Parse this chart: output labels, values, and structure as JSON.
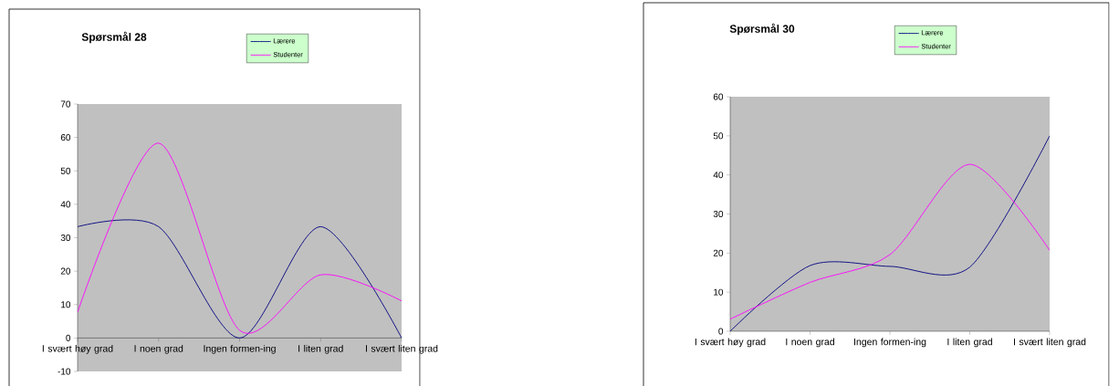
{
  "chart_data": [
    {
      "type": "line",
      "title": "Spørsmål 28",
      "categories": [
        "I svært høy grad",
        "I noen grad",
        "Ingen formen-ing",
        "I liten grad",
        "I svært liten grad"
      ],
      "series": [
        {
          "name": "Lærere",
          "color": "#000080",
          "values": [
            33.3,
            33.3,
            0,
            33.3,
            0
          ]
        },
        {
          "name": "Studenter",
          "color": "#ff00ff",
          "values": [
            7.7,
            58.3,
            2.3,
            18.9,
            11.1
          ]
        }
      ],
      "ylim": [
        -10,
        70
      ],
      "yticks": [
        -10,
        0,
        10,
        20,
        30,
        40,
        50,
        60,
        70
      ],
      "legend": "top",
      "marker": "none"
    },
    {
      "type": "line",
      "title": "Spørsmål 30",
      "categories": [
        "I svært høy grad",
        "I noen grad",
        "Ingen formen-ing",
        "I liten grad",
        "I svært liten grad"
      ],
      "series": [
        {
          "name": "Lærere",
          "color": "#000080",
          "values": [
            0,
            16.8,
            16.6,
            16.4,
            50
          ]
        },
        {
          "name": "Studenter",
          "color": "#ff00ff",
          "values": [
            3.1,
            12.5,
            19.6,
            42.7,
            20.7
          ]
        }
      ],
      "ylim": [
        0,
        60
      ],
      "yticks": [
        0,
        10,
        20,
        30,
        40,
        50,
        60
      ],
      "legend": "top",
      "marker": "none"
    }
  ]
}
